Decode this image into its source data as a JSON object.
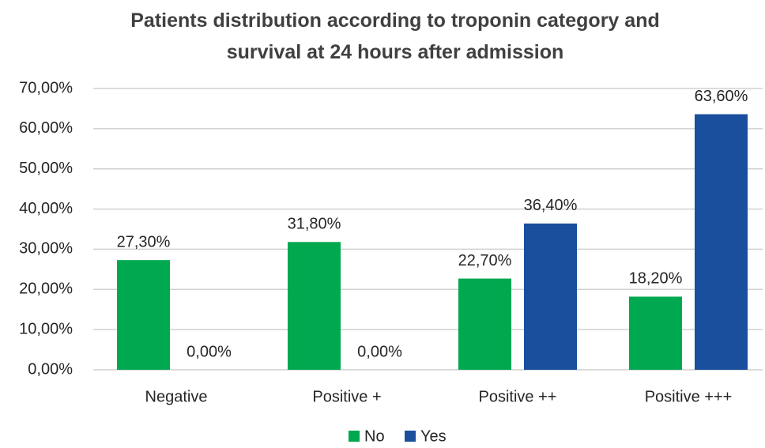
{
  "chart_data": {
    "type": "bar",
    "title": "Patients distribution according to troponin category and survival at 24 hours after admission",
    "categories": [
      "Negative",
      "Positive +",
      "Positive ++",
      "Positive +++"
    ],
    "series": [
      {
        "name": "No",
        "color": "#00a850",
        "values": [
          27.3,
          31.8,
          22.7,
          18.2
        ],
        "value_labels": [
          "27,30%",
          "31,80%",
          "22,70%",
          "18,20%"
        ]
      },
      {
        "name": "Yes",
        "color": "#1a4f9e",
        "values": [
          0,
          0,
          36.4,
          63.6
        ],
        "value_labels": [
          "0,00%",
          "0,00%",
          "36,40%",
          "63,60%"
        ]
      }
    ],
    "ylim": [
      0,
      70
    ],
    "yticks": [
      {
        "value": 0,
        "label": "0,00%"
      },
      {
        "value": 10,
        "label": "10,00%"
      },
      {
        "value": 20,
        "label": "20,00%"
      },
      {
        "value": 30,
        "label": "30,00%"
      },
      {
        "value": 40,
        "label": "40,00%"
      },
      {
        "value": 50,
        "label": "50,00%"
      },
      {
        "value": 60,
        "label": "60,00%"
      },
      {
        "value": 70,
        "label": "70,00%"
      }
    ],
    "grid": true,
    "legend": "bottom"
  }
}
